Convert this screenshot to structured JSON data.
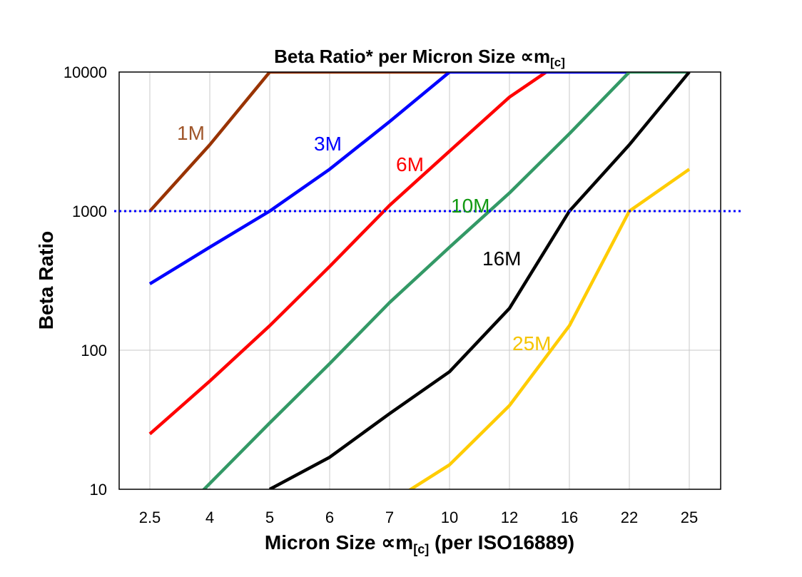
{
  "chart_data": {
    "type": "line",
    "title": "Beta Ratio* per Micron Size ",
    "title_symbol": "∝m",
    "title_sub": "[c]",
    "xlabel": "Micron Size ",
    "xlabel_symbol": "∝m",
    "xlabel_sub": "[c]",
    "xlabel_suffix": " (per ISO16889)",
    "ylabel": "Beta Ratio",
    "y_scale": "log",
    "ylim": [
      10,
      10000
    ],
    "y_ticks": [
      "10",
      "100",
      "1000",
      "10000"
    ],
    "categories": [
      "2.5",
      "4",
      "5",
      "6",
      "7",
      "10",
      "12",
      "16",
      "22",
      "25"
    ],
    "grid": true,
    "reference_line": {
      "y": 1000,
      "style": "dotted",
      "color": "#0000ff"
    },
    "series": [
      {
        "name": "1M",
        "color": "#993300",
        "label_color": "#a0562a",
        "values": [
          1000,
          3000,
          10000,
          10000,
          10000,
          10000,
          null,
          null,
          null,
          null
        ]
      },
      {
        "name": "6M",
        "color": "#ff0000",
        "label_color": "#ff0000",
        "values": [
          25,
          60,
          150,
          400,
          1100,
          2700,
          6600,
          13000,
          null,
          null
        ]
      },
      {
        "name": "3M",
        "color": "#0000ff",
        "label_color": "#0000ff",
        "values": [
          300,
          550,
          1000,
          2000,
          4400,
          10000,
          10000,
          10000,
          10000,
          null
        ]
      },
      {
        "name": "10M",
        "color": "#339966",
        "label_color": "#119911",
        "values": [
          4,
          11,
          30,
          80,
          220,
          550,
          1350,
          3600,
          10000,
          10000
        ]
      },
      {
        "name": "16M",
        "color": "#000000",
        "label_color": "#000000",
        "values": [
          null,
          null,
          10,
          17,
          35,
          70,
          200,
          1000,
          3000,
          10000
        ]
      },
      {
        "name": "25M",
        "color": "#ffcc00",
        "label_color": "#f5c400",
        "values": [
          null,
          null,
          null,
          null,
          8,
          15,
          40,
          150,
          1000,
          2000
        ]
      }
    ]
  }
}
